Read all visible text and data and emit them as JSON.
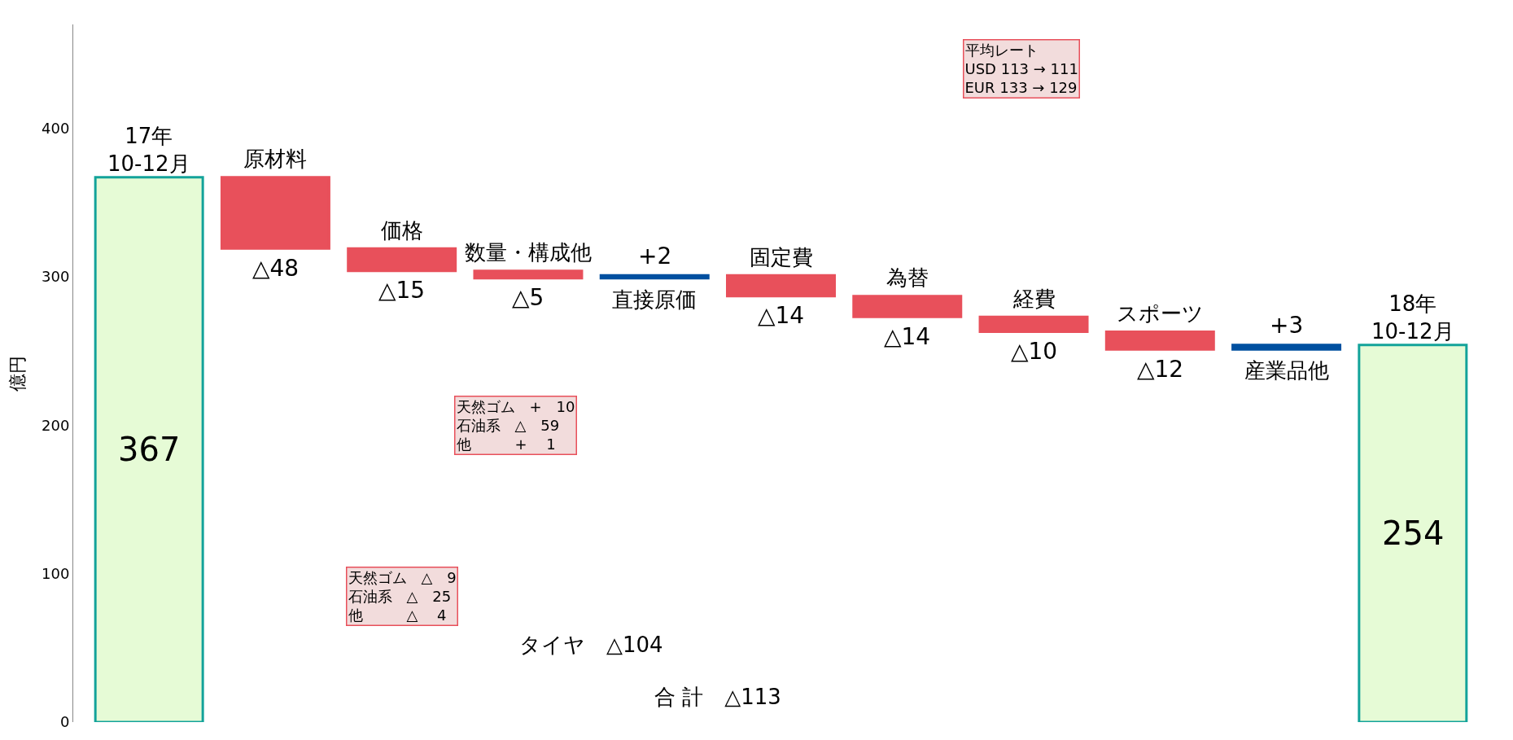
{
  "chart_data": {
    "type": "bar",
    "ylabel": "億円",
    "categories": [
      "17年\n10-12月",
      "原材料",
      "価格",
      "数量・構成他",
      "直接原価",
      "固定費",
      "為替",
      "経費",
      "スポーツ",
      "産業品他",
      "18年\n10-12月"
    ],
    "values": [
      367,
      -48,
      -15,
      -5,
      2,
      -14,
      -14,
      -10,
      -12,
      3,
      254
    ],
    "base": [
      0,
      367,
      319,
      304,
      299,
      301,
      287,
      273,
      263,
      251,
      0
    ],
    "colors": [
      "#e6fbd6",
      "#e8505b",
      "#e8505b",
      "#e8505b",
      "#0050a0",
      "#e8505b",
      "#e8505b",
      "#e8505b",
      "#e8505b",
      "#0050a0",
      "#e6fbd6"
    ],
    "value_labels": [
      "367",
      "△48",
      "△15",
      "△5",
      "+2",
      "△14",
      "△14",
      "△10",
      "△12",
      "+3",
      "254"
    ],
    "ylim": [
      0,
      470
    ],
    "yticks": [
      0,
      100,
      200,
      300,
      400
    ],
    "tick_labels": "y",
    "annotations": [
      "平均レート\nUSD 113 → 111\nEUR 133 → 129",
      "天然ゴム　+　10\n石油系　△　59\n他　　　+　 1",
      "天然ゴム　△　9\n石油系　△　25\n他　　　△　 4",
      "タイヤ　△104",
      "合 計　△113"
    ]
  }
}
